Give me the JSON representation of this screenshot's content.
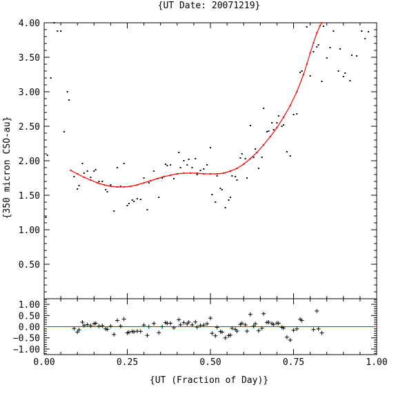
{
  "chart_data": [
    {
      "type": "scatter",
      "title": "{UT Date: 20071219}",
      "xlabel": "",
      "ylabel": "{350 micron CSO-au}",
      "xlim": [
        0,
        1
      ],
      "ylim": [
        0,
        4
      ],
      "yticks": [
        "0.50",
        "1.00",
        "1.50",
        "2.00",
        "2.50",
        "3.00",
        "3.50",
        "4.00"
      ],
      "series": [
        {
          "marker": "dot",
          "points": [
            [
              0.005,
              1.18
            ],
            [
              0.01,
              2.08
            ],
            [
              0.02,
              3.2
            ],
            [
              0.03,
              4.0
            ],
            [
              0.04,
              3.88
            ],
            [
              0.05,
              3.88
            ],
            [
              0.06,
              2.42
            ],
            [
              0.07,
              3.0
            ],
            [
              0.075,
              2.88
            ],
            [
              0.09,
              1.77
            ],
            [
              0.1,
              1.59
            ],
            [
              0.105,
              1.64
            ],
            [
              0.115,
              1.96
            ],
            [
              0.12,
              1.82
            ],
            [
              0.13,
              1.85
            ],
            [
              0.14,
              1.76
            ],
            [
              0.15,
              1.85
            ],
            [
              0.155,
              1.87
            ],
            [
              0.165,
              1.7
            ],
            [
              0.175,
              1.7
            ],
            [
              0.185,
              1.58
            ],
            [
              0.19,
              1.55
            ],
            [
              0.2,
              1.65
            ],
            [
              0.21,
              1.27
            ],
            [
              0.22,
              1.9
            ],
            [
              0.23,
              1.63
            ],
            [
              0.24,
              1.96
            ],
            [
              0.25,
              1.35
            ],
            [
              0.255,
              1.38
            ],
            [
              0.265,
              1.43
            ],
            [
              0.27,
              1.41
            ],
            [
              0.28,
              1.45
            ],
            [
              0.29,
              1.44
            ],
            [
              0.3,
              1.75
            ],
            [
              0.31,
              1.29
            ],
            [
              0.315,
              1.68
            ],
            [
              0.33,
              1.85
            ],
            [
              0.345,
              1.47
            ],
            [
              0.355,
              1.75
            ],
            [
              0.365,
              1.95
            ],
            [
              0.37,
              1.93
            ],
            [
              0.38,
              1.94
            ],
            [
              0.39,
              1.74
            ],
            [
              0.405,
              2.12
            ],
            [
              0.41,
              1.9
            ],
            [
              0.42,
              2.0
            ],
            [
              0.43,
              1.94
            ],
            [
              0.435,
              2.02
            ],
            [
              0.445,
              1.9
            ],
            [
              0.455,
              2.03
            ],
            [
              0.46,
              1.8
            ],
            [
              0.47,
              1.86
            ],
            [
              0.48,
              1.88
            ],
            [
              0.49,
              1.94
            ],
            [
              0.5,
              2.19
            ],
            [
              0.505,
              1.51
            ],
            [
              0.515,
              1.4
            ],
            [
              0.52,
              1.78
            ],
            [
              0.53,
              1.6
            ],
            [
              0.535,
              1.58
            ],
            [
              0.545,
              1.32
            ],
            [
              0.555,
              1.43
            ],
            [
              0.56,
              1.47
            ],
            [
              0.565,
              1.78
            ],
            [
              0.575,
              1.77
            ],
            [
              0.58,
              1.72
            ],
            [
              0.59,
              2.04
            ],
            [
              0.595,
              2.1
            ],
            [
              0.605,
              2.03
            ],
            [
              0.61,
              1.75
            ],
            [
              0.62,
              2.51
            ],
            [
              0.63,
              2.05
            ],
            [
              0.635,
              2.17
            ],
            [
              0.645,
              1.89
            ],
            [
              0.655,
              2.05
            ],
            [
              0.66,
              2.76
            ],
            [
              0.67,
              2.42
            ],
            [
              0.675,
              2.43
            ],
            [
              0.685,
              2.55
            ],
            [
              0.69,
              2.45
            ],
            [
              0.7,
              2.55
            ],
            [
              0.705,
              2.65
            ],
            [
              0.715,
              2.5
            ],
            [
              0.72,
              2.52
            ],
            [
              0.73,
              2.13
            ],
            [
              0.74,
              2.07
            ],
            [
              0.75,
              2.67
            ],
            [
              0.76,
              2.68
            ],
            [
              0.77,
              3.28
            ],
            [
              0.775,
              3.3
            ],
            [
              0.79,
              3.94
            ],
            [
              0.8,
              3.23
            ],
            [
              0.81,
              3.58
            ],
            [
              0.82,
              3.65
            ],
            [
              0.825,
              3.68
            ],
            [
              0.835,
              3.15
            ],
            [
              0.84,
              3.95
            ],
            [
              0.85,
              3.49
            ],
            [
              0.86,
              3.64
            ],
            [
              0.87,
              3.88
            ],
            [
              0.885,
              3.3
            ],
            [
              0.89,
              3.62
            ],
            [
              0.9,
              3.22
            ],
            [
              0.905,
              3.27
            ],
            [
              0.92,
              3.16
            ],
            [
              0.925,
              3.53
            ],
            [
              0.94,
              3.52
            ],
            [
              0.955,
              3.88
            ],
            [
              0.965,
              3.77
            ],
            [
              0.975,
              3.87
            ]
          ]
        },
        {
          "marker": "fit-line",
          "color": "#ff0000",
          "x": [
            0.08,
            0.1,
            0.12,
            0.14,
            0.16,
            0.18,
            0.2,
            0.22,
            0.24,
            0.26,
            0.28,
            0.3,
            0.32,
            0.34,
            0.36,
            0.38,
            0.4,
            0.42,
            0.44,
            0.46,
            0.48,
            0.5,
            0.52,
            0.54,
            0.56,
            0.58,
            0.6,
            0.62,
            0.64,
            0.66,
            0.68,
            0.7,
            0.72,
            0.74,
            0.76,
            0.78,
            0.79,
            0.8,
            0.81,
            0.82,
            0.83,
            0.835
          ],
          "y": [
            1.86,
            1.81,
            1.76,
            1.72,
            1.68,
            1.65,
            1.63,
            1.62,
            1.62,
            1.63,
            1.65,
            1.68,
            1.71,
            1.74,
            1.77,
            1.79,
            1.81,
            1.82,
            1.82,
            1.82,
            1.81,
            1.81,
            1.81,
            1.82,
            1.85,
            1.89,
            1.95,
            2.03,
            2.12,
            2.23,
            2.35,
            2.48,
            2.63,
            2.8,
            3.0,
            3.25,
            3.4,
            3.56,
            3.71,
            3.85,
            3.96,
            4.0
          ]
        }
      ]
    },
    {
      "type": "scatter",
      "title": "",
      "xlabel": "{UT (Fraction of Day)}",
      "ylabel": "",
      "xlim": [
        0,
        1
      ],
      "ylim": [
        -1.25,
        1.25
      ],
      "xticks": [
        "0.00",
        "0.25",
        "0.50",
        "0.75",
        "1.00"
      ],
      "yticks": [
        "1.00",
        "0.50",
        "0.00",
        "−0.50",
        "−1.00"
      ],
      "zero_line_color": "#ff0000",
      "series": [
        {
          "marker": "plus",
          "points": [
            [
              0.09,
              -0.08
            ],
            [
              0.1,
              -0.24
            ],
            [
              0.105,
              -0.14
            ],
            [
              0.115,
              0.2
            ],
            [
              0.12,
              0.05
            ],
            [
              0.13,
              0.09
            ],
            [
              0.14,
              0.04
            ],
            [
              0.15,
              0.13
            ],
            [
              0.155,
              0.15
            ],
            [
              0.165,
              0.02
            ],
            [
              0.175,
              0.04
            ],
            [
              0.185,
              -0.1
            ],
            [
              0.19,
              -0.12
            ],
            [
              0.2,
              0.02
            ],
            [
              0.21,
              -0.35
            ],
            [
              0.22,
              0.28
            ],
            [
              0.23,
              0.02
            ],
            [
              0.24,
              0.34
            ],
            [
              0.25,
              -0.28
            ],
            [
              0.255,
              -0.25
            ],
            [
              0.265,
              -0.21
            ],
            [
              0.27,
              -0.23
            ],
            [
              0.28,
              -0.2
            ],
            [
              0.29,
              -0.21
            ],
            [
              0.3,
              0.07
            ],
            [
              0.31,
              -0.39
            ],
            [
              0.315,
              0.0
            ],
            [
              0.33,
              0.14
            ],
            [
              0.345,
              -0.27
            ],
            [
              0.355,
              0.0
            ],
            [
              0.365,
              0.18
            ],
            [
              0.37,
              0.15
            ],
            [
              0.38,
              0.15
            ],
            [
              0.39,
              -0.05
            ],
            [
              0.405,
              0.31
            ],
            [
              0.41,
              0.08
            ],
            [
              0.42,
              0.18
            ],
            [
              0.43,
              0.12
            ],
            [
              0.435,
              0.2
            ],
            [
              0.445,
              0.08
            ],
            [
              0.455,
              0.21
            ],
            [
              0.46,
              -0.02
            ],
            [
              0.47,
              0.05
            ],
            [
              0.48,
              0.07
            ],
            [
              0.49,
              0.13
            ],
            [
              0.5,
              0.38
            ],
            [
              0.505,
              -0.3
            ],
            [
              0.515,
              -0.41
            ],
            [
              0.52,
              -0.03
            ],
            [
              0.53,
              -0.22
            ],
            [
              0.535,
              -0.24
            ],
            [
              0.545,
              -0.5
            ],
            [
              0.555,
              -0.4
            ],
            [
              0.56,
              -0.38
            ],
            [
              0.565,
              -0.07
            ],
            [
              0.575,
              -0.12
            ],
            [
              0.58,
              -0.2
            ],
            [
              0.59,
              0.1
            ],
            [
              0.595,
              0.15
            ],
            [
              0.605,
              0.08
            ],
            [
              0.61,
              -0.2
            ],
            [
              0.62,
              0.55
            ],
            [
              0.63,
              0.02
            ],
            [
              0.635,
              0.13
            ],
            [
              0.645,
              -0.18
            ],
            [
              0.655,
              -0.07
            ],
            [
              0.66,
              0.58
            ],
            [
              0.67,
              0.19
            ],
            [
              0.675,
              0.2
            ],
            [
              0.685,
              0.14
            ],
            [
              0.69,
              0.09
            ],
            [
              0.7,
              0.16
            ],
            [
              0.705,
              0.15
            ],
            [
              0.715,
              -0.03
            ],
            [
              0.72,
              -0.06
            ],
            [
              0.73,
              -0.47
            ],
            [
              0.74,
              -0.6
            ],
            [
              0.75,
              -0.16
            ],
            [
              0.76,
              -0.1
            ],
            [
              0.77,
              0.33
            ],
            [
              0.775,
              0.28
            ],
            [
              0.81,
              -0.13
            ],
            [
              0.82,
              0.7
            ],
            [
              0.825,
              -0.1
            ],
            [
              0.835,
              -0.28
            ]
          ]
        }
      ]
    }
  ]
}
